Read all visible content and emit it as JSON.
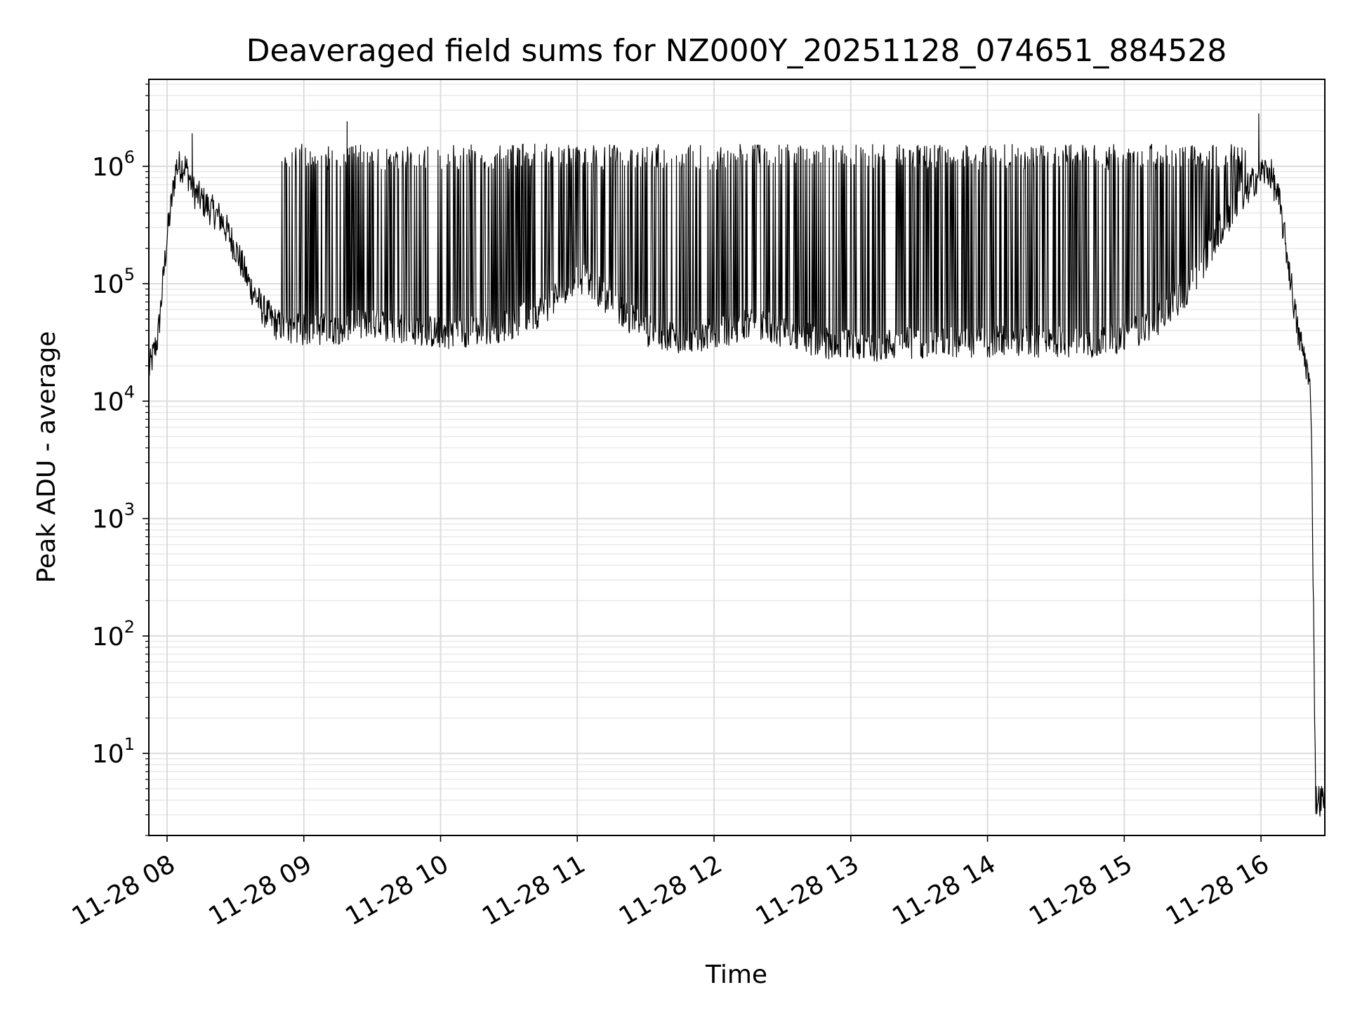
{
  "chart_data": {
    "type": "line",
    "title": "Deaveraged field sums for NZ000Y_20251128_074651_884528",
    "xlabel": "Time",
    "ylabel": "Peak ADU - average",
    "yscale": "log",
    "ylim": [
      2,
      5500000
    ],
    "xlim": [
      "2025-11-28 07:52",
      "2025-11-28 16:28"
    ],
    "grid": "major and minor",
    "line_color": "#000000",
    "x_ticks": [
      "11-28 08",
      "11-28 09",
      "11-28 10",
      "11-28 11",
      "11-28 12",
      "11-28 13",
      "11-28 14",
      "11-28 15",
      "11-28 16"
    ],
    "y_ticks": [
      {
        "base": "10",
        "exp": "1",
        "value": 10
      },
      {
        "base": "10",
        "exp": "2",
        "value": 100
      },
      {
        "base": "10",
        "exp": "3",
        "value": 1000
      },
      {
        "base": "10",
        "exp": "4",
        "value": 10000
      },
      {
        "base": "10",
        "exp": "5",
        "value": 100000
      },
      {
        "base": "10",
        "exp": "6",
        "value": 1000000
      }
    ],
    "series": [
      {
        "values_note": "",
        "x": [
          "07:52",
          "07:56",
          "08:00",
          "08:04",
          "08:08",
          "08:12",
          "08:18",
          "08:24",
          "08:30",
          "08:36",
          "08:42",
          "08:48",
          "08:54",
          "09:00",
          "09:15",
          "09:30",
          "09:45",
          "10:00",
          "10:15",
          "10:30",
          "10:45",
          "11:00",
          "11:15",
          "11:30",
          "11:45",
          "12:00",
          "12:15",
          "12:30",
          "12:45",
          "13:00",
          "13:15",
          "13:30",
          "13:45",
          "14:00",
          "14:15",
          "14:30",
          "14:45",
          "15:00",
          "15:15",
          "15:30",
          "15:40",
          "15:50",
          "16:00",
          "16:04",
          "16:08",
          "16:12",
          "16:16",
          "16:20",
          "16:22",
          "16:24",
          "16:28"
        ],
        "base": [
          18000,
          35000,
          250000,
          1000000,
          1000000,
          600000,
          450000,
          350000,
          200000,
          100000,
          60000,
          45000,
          42000,
          40000,
          42000,
          45000,
          42000,
          38000,
          40000,
          45000,
          60000,
          120000,
          70000,
          40000,
          35000,
          38000,
          45000,
          40000,
          32000,
          30000,
          30000,
          32000,
          32000,
          32000,
          32000,
          32000,
          32000,
          35000,
          50000,
          100000,
          250000,
          500000,
          900000,
          900000,
          500000,
          150000,
          40000,
          20000,
          10000,
          4,
          4
        ],
        "spike_count": 460,
        "spike_peak": 1200000,
        "spike_window": [
          "08:50",
          "15:55"
        ],
        "max_points": [
          {
            "x": "09:19",
            "y": 2400000
          },
          {
            "x": "15:59",
            "y": 2800000
          },
          {
            "x": "08:11",
            "y": 1900000
          }
        ]
      }
    ]
  }
}
